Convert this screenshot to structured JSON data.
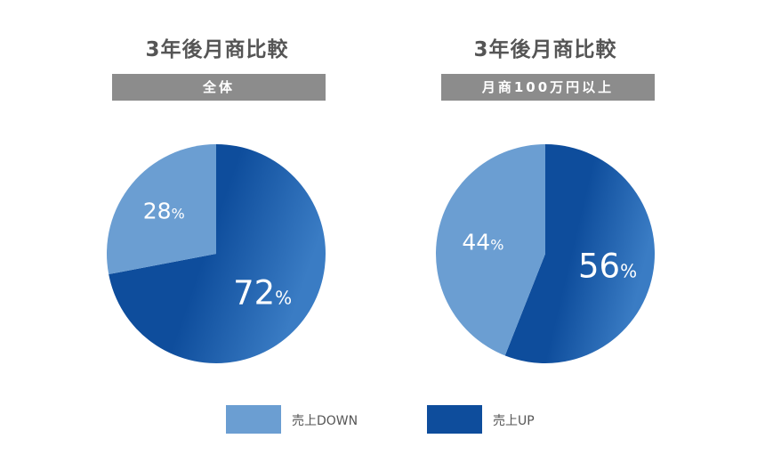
{
  "chart_data": [
    {
      "type": "pie",
      "title": "3年後月商比較",
      "subtitle": "全体",
      "categories": [
        "売上DOWN",
        "売上UP"
      ],
      "values": [
        28,
        72
      ],
      "labels": [
        "28",
        "72"
      ],
      "unit": "%"
    },
    {
      "type": "pie",
      "title": "3年後月商比較",
      "subtitle": "月商100万円以上",
      "categories": [
        "売上DOWN",
        "売上UP"
      ],
      "values": [
        44,
        56
      ],
      "labels": [
        "44",
        "56"
      ],
      "unit": "%"
    }
  ],
  "legend": {
    "placement": "bottom",
    "items": [
      {
        "label": "売上DOWN",
        "color": "#6b9ed2"
      },
      {
        "label": "売上UP",
        "color": "#0e4d9c"
      }
    ]
  },
  "colors": {
    "down": "#6b9ed2",
    "up": "#0e4d9c",
    "up_gradient_end": "#3a7cc4",
    "label_bar": "#8c8c8c",
    "title_text": "#555555"
  }
}
